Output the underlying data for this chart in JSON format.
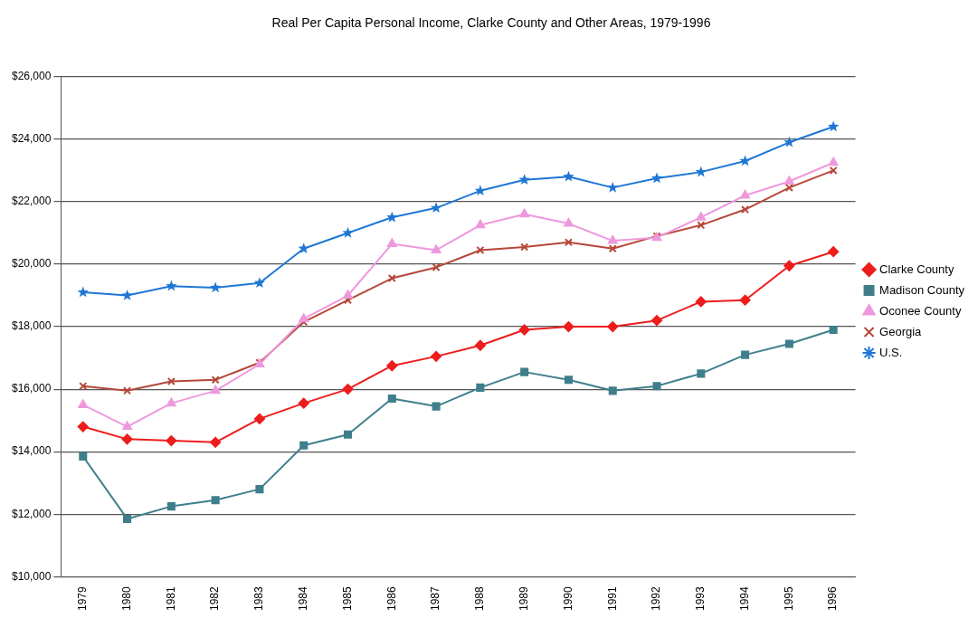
{
  "chart_data": {
    "type": "line",
    "title": "Real Per Capita Personal Income, Clarke County and Other Areas, 1979-1996",
    "categories": [
      "1979",
      "1980",
      "1981",
      "1982",
      "1983",
      "1984",
      "1985",
      "1986",
      "1987",
      "1988",
      "1989",
      "1990",
      "1991",
      "1992",
      "1993",
      "1994",
      "1995",
      "1996"
    ],
    "series": [
      {
        "name": "Clarke County",
        "color": "#ee1c1c",
        "marker": "diamond",
        "values": [
          14800,
          14400,
          14350,
          14300,
          15050,
          15550,
          16000,
          16750,
          17050,
          17400,
          17900,
          18000,
          18000,
          18200,
          18800,
          18850,
          19950,
          20400
        ]
      },
      {
        "name": "Madison County",
        "color": "#3f7f8c",
        "marker": "square",
        "values": [
          13850,
          11850,
          12250,
          12450,
          12800,
          14200,
          14550,
          15700,
          15450,
          16050,
          16550,
          16300,
          15950,
          16100,
          16500,
          17100,
          17450,
          17900
        ]
      },
      {
        "name": "Oconee County",
        "color": "#ee99dd",
        "marker": "triangle",
        "values": [
          15500,
          14800,
          15550,
          15950,
          16800,
          18250,
          19000,
          20650,
          20450,
          21250,
          21600,
          21300,
          20750,
          20850,
          21500,
          22200,
          22650,
          23250
        ]
      },
      {
        "name": "Georgia",
        "color": "#b5483a",
        "marker": "cross",
        "values": [
          16100,
          15950,
          16250,
          16300,
          16850,
          18150,
          18850,
          19550,
          19900,
          20450,
          20550,
          20700,
          20500,
          20900,
          21250,
          21750,
          22450,
          23000
        ]
      },
      {
        "name": "U.S.",
        "color": "#1f77d4",
        "marker": "star",
        "values": [
          19100,
          19000,
          19300,
          19250,
          19400,
          20500,
          21000,
          21500,
          21800,
          22350,
          22700,
          22800,
          22450,
          22750,
          22950,
          23300,
          23900,
          24400
        ]
      }
    ],
    "ylim": [
      10000,
      26000
    ],
    "yticks": [
      {
        "value": 10000,
        "label": "$10,000"
      },
      {
        "value": 12000,
        "label": "$12,000"
      },
      {
        "value": 14000,
        "label": "$14,000"
      },
      {
        "value": 16000,
        "label": "$16,000"
      },
      {
        "value": 18000,
        "label": "$18,000"
      },
      {
        "value": 20000,
        "label": "$20,000"
      },
      {
        "value": 22000,
        "label": "$22,000"
      },
      {
        "value": 24000,
        "label": "$24,000"
      },
      {
        "value": 26000,
        "label": "$26,000"
      }
    ],
    "grid": "y",
    "legend": "right",
    "line_style": "solid"
  }
}
